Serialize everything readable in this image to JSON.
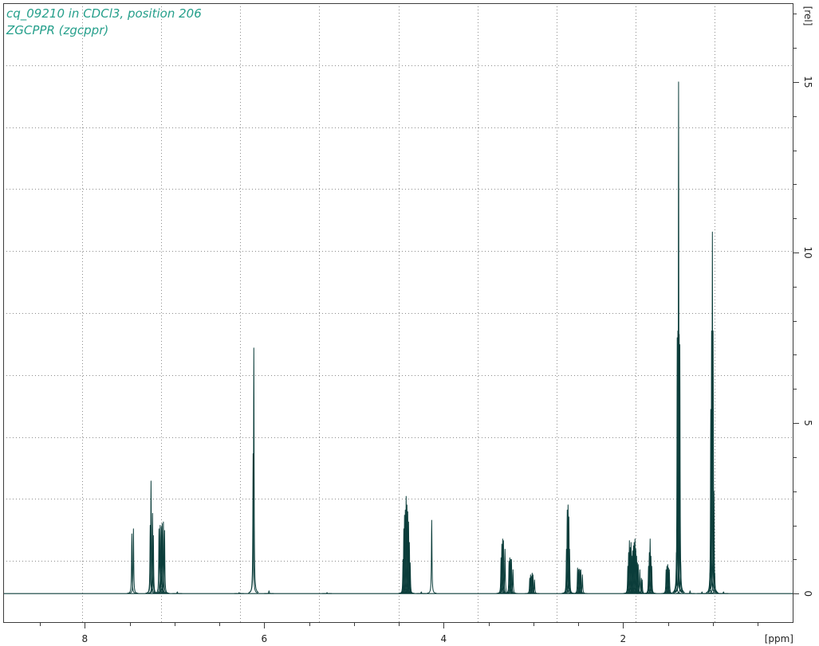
{
  "chart_data": {
    "type": "line",
    "title": "cq_09210 in CDCl3, position 206",
    "subtitle": "ZGCPPR (zgcppr)",
    "xlabel": "[ppm]",
    "ylabel": "[rel]",
    "xlim": [
      8.91,
      0.1
    ],
    "ylim": [
      -0.86,
      17.31
    ],
    "x_ticks": [
      "8",
      "6",
      "4",
      "2"
    ],
    "y_ticks": [
      "0",
      "5",
      "10",
      "15"
    ],
    "grid": true,
    "colors": {
      "trace": "#0b3d3a",
      "title": "#259f8b"
    },
    "series": [
      {
        "peaks": [
          [
            7.476,
            1.75
          ],
          [
            7.458,
            1.9
          ],
          [
            7.271,
            2.0
          ],
          [
            7.262,
            3.3
          ],
          [
            7.245,
            2.35
          ],
          [
            7.236,
            1.7
          ],
          [
            7.173,
            1.9
          ],
          [
            7.16,
            2.0
          ],
          [
            7.147,
            1.95
          ],
          [
            7.138,
            2.05
          ],
          [
            7.124,
            2.1
          ],
          [
            7.111,
            1.85
          ],
          [
            6.969,
            0.05
          ],
          [
            6.28,
            0.03
          ],
          [
            6.124,
            4.1
          ],
          [
            6.116,
            7.2
          ],
          [
            5.947,
            0.08
          ],
          [
            5.3,
            0.03
          ],
          [
            4.453,
            1.0
          ],
          [
            4.444,
            1.9
          ],
          [
            4.436,
            2.3
          ],
          [
            4.427,
            2.45
          ],
          [
            4.418,
            2.85
          ],
          [
            4.409,
            2.6
          ],
          [
            4.4,
            2.4
          ],
          [
            4.391,
            2.1
          ],
          [
            4.382,
            1.5
          ],
          [
            4.373,
            0.9
          ],
          [
            4.249,
            0.05
          ],
          [
            4.133,
            2.15
          ],
          [
            3.36,
            1.05
          ],
          [
            3.351,
            1.45
          ],
          [
            3.342,
            1.6
          ],
          [
            3.333,
            1.55
          ],
          [
            3.316,
            1.3
          ],
          [
            3.271,
            0.95
          ],
          [
            3.262,
            1.05
          ],
          [
            3.253,
            1.0
          ],
          [
            3.244,
            1.0
          ],
          [
            3.227,
            0.7
          ],
          [
            3.04,
            0.45
          ],
          [
            3.031,
            0.55
          ],
          [
            3.022,
            0.5
          ],
          [
            3.013,
            0.6
          ],
          [
            3.004,
            0.55
          ],
          [
            2.987,
            0.4
          ],
          [
            2.631,
            1.3
          ],
          [
            2.622,
            2.45
          ],
          [
            2.613,
            2.6
          ],
          [
            2.604,
            2.25
          ],
          [
            2.596,
            1.3
          ],
          [
            2.507,
            0.75
          ],
          [
            2.498,
            0.7
          ],
          [
            2.489,
            0.72
          ],
          [
            2.48,
            0.68
          ],
          [
            2.471,
            0.7
          ],
          [
            2.453,
            0.55
          ],
          [
            1.947,
            0.8
          ],
          [
            1.938,
            1.2
          ],
          [
            1.929,
            1.55
          ],
          [
            1.92,
            1.35
          ],
          [
            1.911,
            1.5
          ],
          [
            1.902,
            1.1
          ],
          [
            1.893,
            1.25
          ],
          [
            1.884,
            1.4
          ],
          [
            1.876,
            1.5
          ],
          [
            1.867,
            1.6
          ],
          [
            1.858,
            1.3
          ],
          [
            1.849,
            1.1
          ],
          [
            1.84,
            0.9
          ],
          [
            1.831,
            0.85
          ],
          [
            1.813,
            0.7
          ],
          [
            1.796,
            0.45
          ],
          [
            1.787,
            0.4
          ],
          [
            1.716,
            0.8
          ],
          [
            1.707,
            1.2
          ],
          [
            1.698,
            1.6
          ],
          [
            1.689,
            1.1
          ],
          [
            1.68,
            0.8
          ],
          [
            1.52,
            0.7
          ],
          [
            1.511,
            0.8
          ],
          [
            1.502,
            0.85
          ],
          [
            1.493,
            0.75
          ],
          [
            1.484,
            0.7
          ],
          [
            1.405,
            1.2
          ],
          [
            1.396,
            7.5
          ],
          [
            1.389,
            7.7
          ],
          [
            1.381,
            15.0
          ],
          [
            1.374,
            7.6
          ],
          [
            1.367,
            7.3
          ],
          [
            1.358,
            1.0
          ],
          [
            1.253,
            0.08
          ],
          [
            1.12,
            0.05
          ],
          [
            1.031,
            0.6
          ],
          [
            1.022,
            5.4
          ],
          [
            1.013,
            7.7
          ],
          [
            1.004,
            10.6
          ],
          [
            0.996,
            7.7
          ],
          [
            0.987,
            3.0
          ],
          [
            0.978,
            0.6
          ],
          [
            0.88,
            0.05
          ]
        ]
      }
    ]
  }
}
